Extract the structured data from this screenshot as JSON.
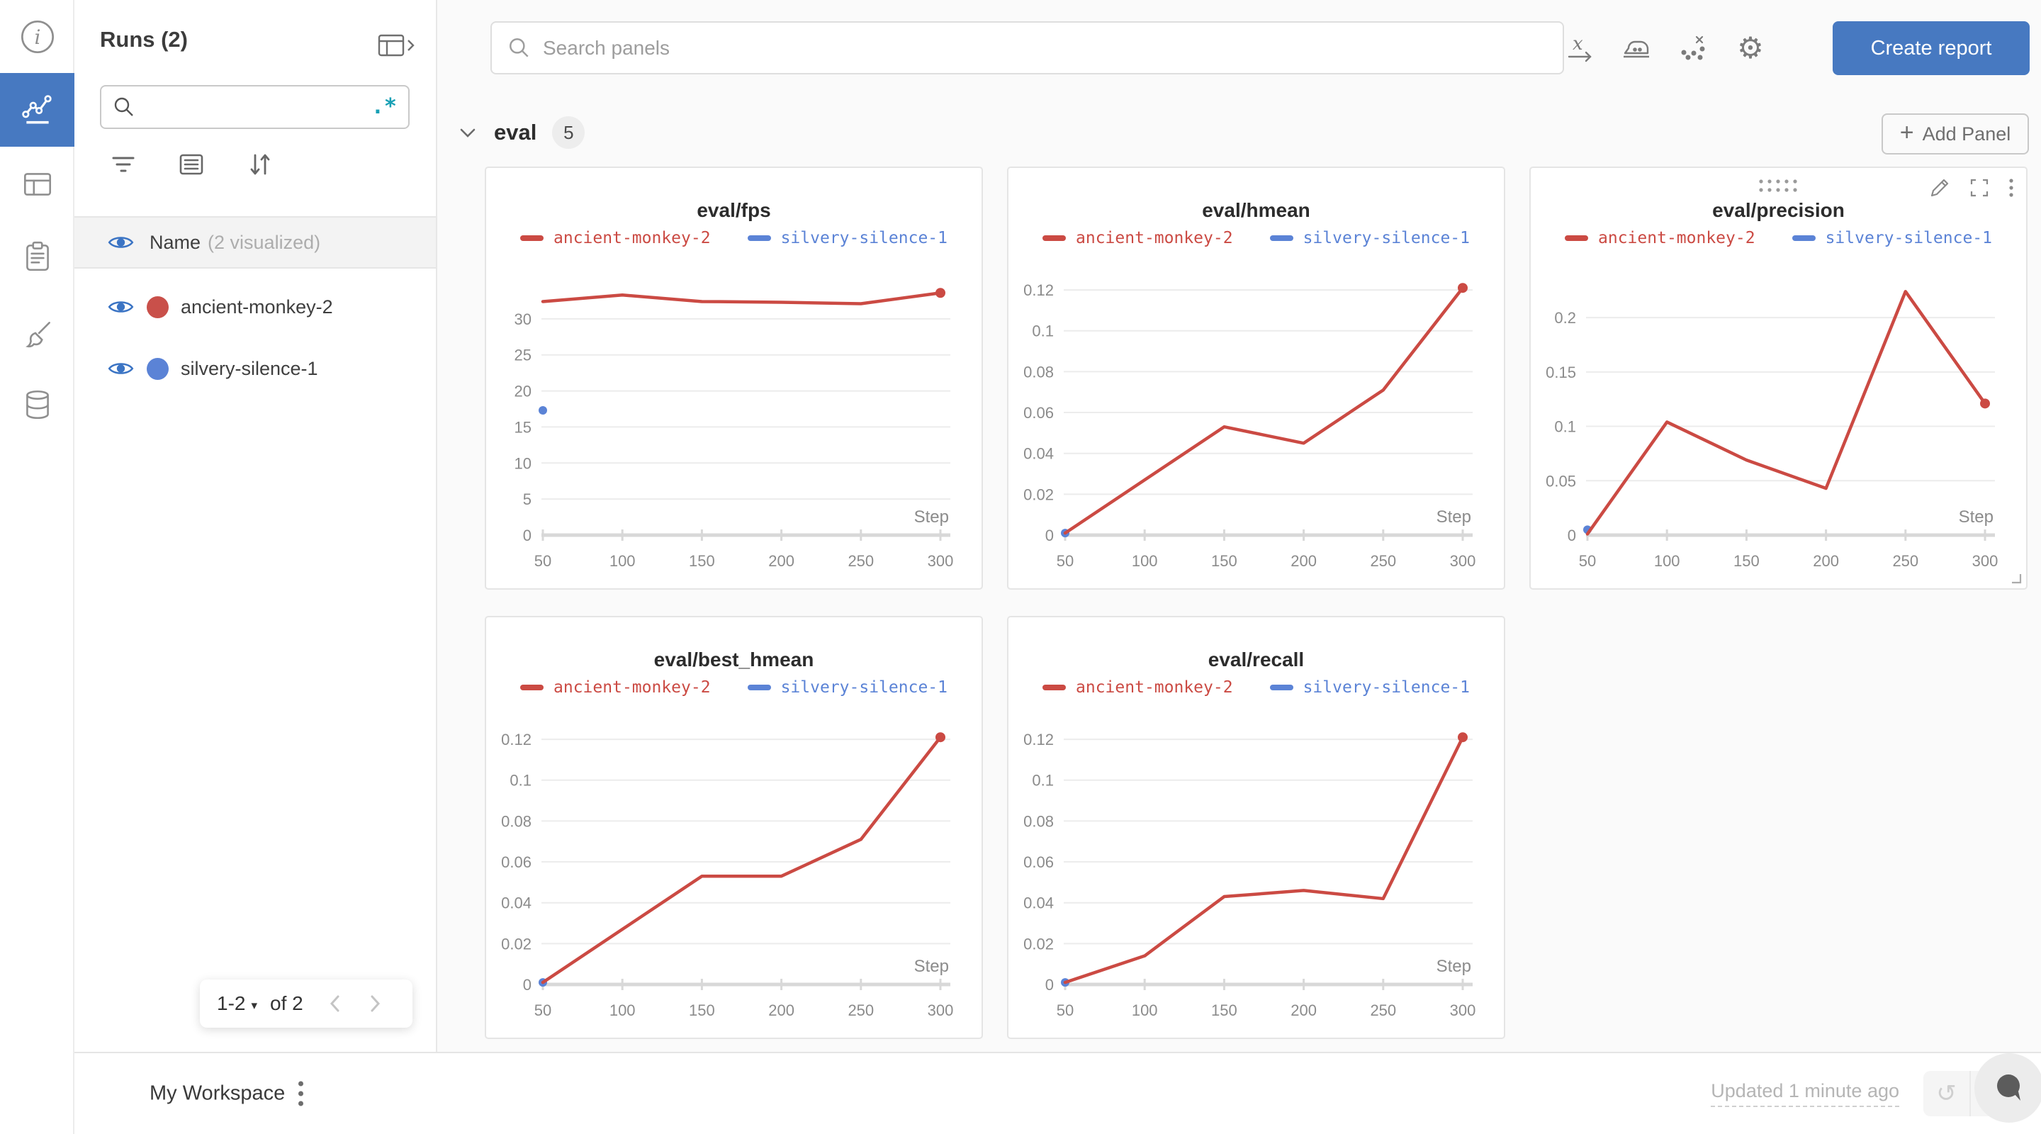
{
  "rail": {
    "items": [
      "overview",
      "workspace-charts",
      "runs-table",
      "logs",
      "sweeps",
      "artifacts"
    ],
    "active": "workspace-charts"
  },
  "sidebar": {
    "title": "Runs (2)",
    "search_placeholder": "",
    "regex_icon": ".*",
    "name_header": {
      "label": "Name",
      "note": "(2 visualized)"
    },
    "runs": [
      {
        "name": "ancient-monkey-2",
        "color": "#c9504a"
      },
      {
        "name": "silvery-silence-1",
        "color": "#5b83d6"
      }
    ],
    "pagination": {
      "range": "1-2",
      "caret": "▾",
      "of": "of 2"
    }
  },
  "topbar": {
    "search_placeholder": "Search panels",
    "create_report_label": "Create report"
  },
  "section": {
    "name": "eval",
    "count": "5",
    "add_panel_label": "Add Panel",
    "add_panel_plus": "+"
  },
  "footer": {
    "workspace": "My Workspace",
    "updated": "Updated 1 minute ago",
    "undo_icon": "↺",
    "redo_icon": "↻"
  },
  "colors": {
    "accent_blue": "#4779c1",
    "run_red": "#c9504a",
    "run_blue": "#5b83d6",
    "chart_red": "#cb4a43",
    "chart_blue": "#5b83d6",
    "regex_teal": "#18a0b5",
    "eye_blue": "#3b74c4"
  },
  "chart_data": [
    {
      "type": "line",
      "title": "eval/fps",
      "xlabel": "Step",
      "x": [
        50,
        100,
        150,
        200,
        250,
        300
      ],
      "x_labels": [
        "50",
        "100",
        "150",
        "200",
        "250",
        "300"
      ],
      "ylim": [
        0,
        35
      ],
      "y_ticks": [
        0,
        5,
        10,
        15,
        20,
        25,
        30
      ],
      "y_labels": [
        "0",
        "5",
        "10",
        "15",
        "20",
        "25",
        "30"
      ],
      "legend_position": "top",
      "grid": "horizontal",
      "series": [
        {
          "name": "ancient-monkey-2",
          "color": "#cb4a43",
          "x": [
            50,
            100,
            150,
            200,
            250,
            300
          ],
          "y": [
            32.4,
            33.3,
            32.4,
            32.3,
            32.1,
            33.6
          ],
          "end_marker": true
        },
        {
          "name": "silvery-silence-1",
          "color": "#5b83d6",
          "x": [
            50
          ],
          "y": [
            17.3
          ],
          "dot": true
        }
      ]
    },
    {
      "type": "line",
      "title": "eval/hmean",
      "xlabel": "Step",
      "x": [
        50,
        100,
        150,
        200,
        250,
        300
      ],
      "x_labels": [
        "50",
        "100",
        "150",
        "200",
        "250",
        "300"
      ],
      "ylim": [
        0,
        0.1235
      ],
      "y_ticks": [
        0,
        0.02,
        0.04,
        0.06,
        0.08,
        0.1,
        0.12
      ],
      "y_labels": [
        "0",
        "0.02",
        "0.04",
        "0.06",
        "0.08",
        "0.1",
        "0.12"
      ],
      "legend_position": "top",
      "grid": "horizontal",
      "series": [
        {
          "name": "ancient-monkey-2",
          "color": "#cb4a43",
          "x": [
            50,
            100,
            150,
            200,
            250,
            300
          ],
          "y": [
            0.001,
            0.027,
            0.053,
            0.045,
            0.071,
            0.121
          ],
          "end_marker": true
        },
        {
          "name": "silvery-silence-1",
          "color": "#5b83d6",
          "x": [
            50
          ],
          "y": [
            0.001
          ],
          "dot": true
        }
      ]
    },
    {
      "type": "line",
      "title": "eval/precision",
      "xlabel": "Step",
      "x": [
        50,
        100,
        150,
        200,
        250,
        300
      ],
      "x_labels": [
        "50",
        "100",
        "150",
        "200",
        "250",
        "300"
      ],
      "ylim": [
        0,
        0.232
      ],
      "y_ticks": [
        0,
        0.05,
        0.1,
        0.15,
        0.2
      ],
      "y_labels": [
        "0",
        "0.05",
        "0.1",
        "0.15",
        "0.2"
      ],
      "legend_position": "top",
      "grid": "horizontal",
      "hover_controls": true,
      "series": [
        {
          "name": "ancient-monkey-2",
          "color": "#cb4a43",
          "x": [
            50,
            100,
            150,
            200,
            250,
            300
          ],
          "y": [
            0.001,
            0.104,
            0.069,
            0.043,
            0.224,
            0.121
          ],
          "end_marker": true
        },
        {
          "name": "silvery-silence-1",
          "color": "#5b83d6",
          "x": [
            50
          ],
          "y": [
            0.005
          ],
          "dot": true
        }
      ]
    },
    {
      "type": "line",
      "title": "eval/best_hmean",
      "xlabel": "Step",
      "x": [
        50,
        100,
        150,
        200,
        250,
        300
      ],
      "x_labels": [
        "50",
        "100",
        "150",
        "200",
        "250",
        "300"
      ],
      "ylim": [
        0,
        0.1235
      ],
      "y_ticks": [
        0,
        0.02,
        0.04,
        0.06,
        0.08,
        0.1,
        0.12
      ],
      "y_labels": [
        "0",
        "0.02",
        "0.04",
        "0.06",
        "0.08",
        "0.1",
        "0.12"
      ],
      "legend_position": "top",
      "grid": "horizontal",
      "series": [
        {
          "name": "ancient-monkey-2",
          "color": "#cb4a43",
          "x": [
            50,
            100,
            150,
            200,
            250,
            300
          ],
          "y": [
            0.001,
            0.027,
            0.053,
            0.053,
            0.071,
            0.121
          ],
          "end_marker": true
        },
        {
          "name": "silvery-silence-1",
          "color": "#5b83d6",
          "x": [
            50
          ],
          "y": [
            0.001
          ],
          "dot": true
        }
      ]
    },
    {
      "type": "line",
      "title": "eval/recall",
      "xlabel": "Step",
      "x": [
        50,
        100,
        150,
        200,
        250,
        300
      ],
      "x_labels": [
        "50",
        "100",
        "150",
        "200",
        "250",
        "300"
      ],
      "ylim": [
        0,
        0.1235
      ],
      "y_ticks": [
        0,
        0.02,
        0.04,
        0.06,
        0.08,
        0.1,
        0.12
      ],
      "y_labels": [
        "0",
        "0.02",
        "0.04",
        "0.06",
        "0.08",
        "0.1",
        "0.12"
      ],
      "legend_position": "top",
      "grid": "horizontal",
      "series": [
        {
          "name": "ancient-monkey-2",
          "color": "#cb4a43",
          "x": [
            50,
            100,
            150,
            200,
            250,
            300
          ],
          "y": [
            0.001,
            0.014,
            0.043,
            0.046,
            0.042,
            0.121
          ],
          "end_marker": true
        },
        {
          "name": "silvery-silence-1",
          "color": "#5b83d6",
          "x": [
            50
          ],
          "y": [
            0.001
          ],
          "dot": true
        }
      ]
    }
  ]
}
